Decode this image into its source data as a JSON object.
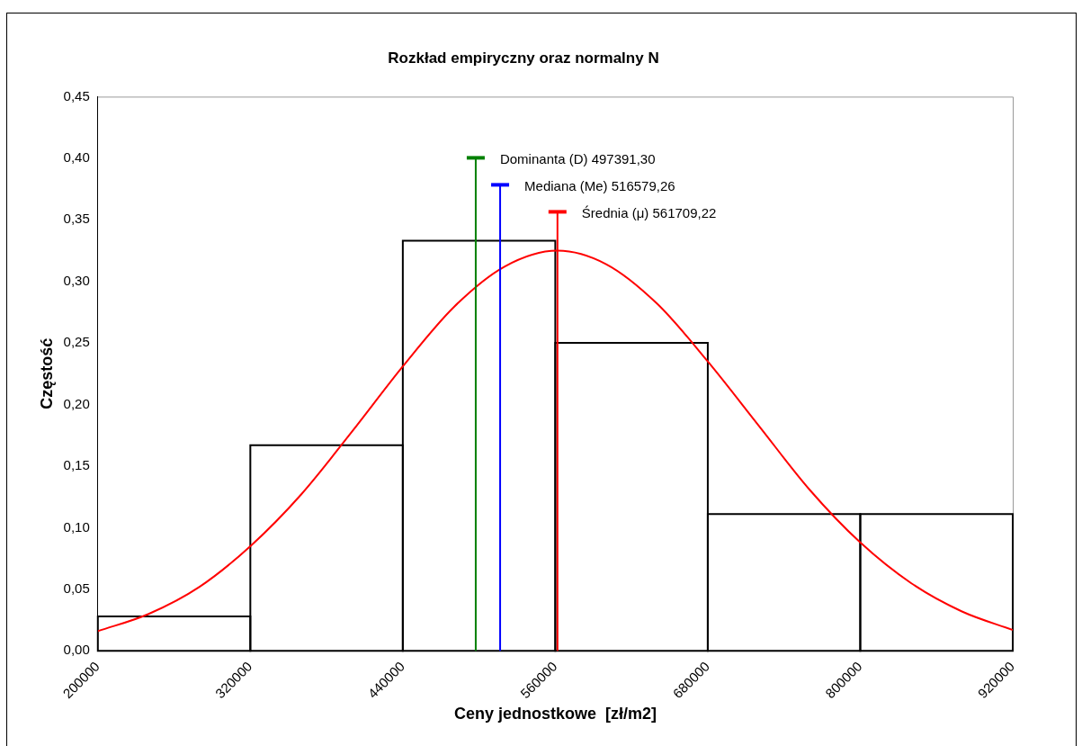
{
  "chart_data": {
    "type": "histogram",
    "title": "Rozkład empiryczny oraz normalny N",
    "xlabel": "Ceny jednostkowe  [zł/m2]",
    "ylabel": "Częstość",
    "bins": [
      200000,
      320000,
      440000,
      560000,
      680000,
      800000,
      920000
    ],
    "values": [
      0.028,
      0.167,
      0.333,
      0.25,
      0.111,
      0.111
    ],
    "color": "#000000",
    "series": [
      {
        "type": "line",
        "color": "#ff0000",
        "x": [
          200000,
          240000,
          280000,
          320000,
          360000,
          400000,
          440000,
          480000,
          520000,
          561709,
          600000,
          640000,
          680000,
          720000,
          760000,
          800000,
          840000,
          880000,
          920000
        ],
        "values": [
          0.016,
          0.03,
          0.052,
          0.085,
          0.127,
          0.178,
          0.231,
          0.279,
          0.312,
          0.325,
          0.314,
          0.282,
          0.235,
          0.183,
          0.131,
          0.088,
          0.055,
          0.032,
          0.017
        ]
      }
    ],
    "ref_lines": [
      {
        "axis": "x",
        "value": 497391.3,
        "label": "Dominanta (D) 497391,30",
        "color": "#008000"
      },
      {
        "axis": "x",
        "value": 516579.26,
        "label": "Mediana (Me) 516579,26",
        "color": "#0000ff"
      },
      {
        "axis": "x",
        "value": 561709.22,
        "label": "Średnia (μ) 561709,22",
        "color": "#ff0000"
      }
    ],
    "xlim": [
      200000,
      920000
    ],
    "xticks": [
      200000,
      320000,
      440000,
      560000,
      680000,
      800000,
      920000
    ],
    "ylim": [
      0,
      0.45
    ],
    "yticks": [
      {
        "value": 0,
        "label": "0,00"
      },
      {
        "value": 0.05,
        "label": "0,05"
      },
      {
        "value": 0.1,
        "label": "0,10"
      },
      {
        "value": 0.15,
        "label": "0,15"
      },
      {
        "value": 0.2,
        "label": "0,20"
      },
      {
        "value": 0.25,
        "label": "0,25"
      },
      {
        "value": 0.3,
        "label": "0,30"
      },
      {
        "value": 0.35,
        "label": "0,35"
      },
      {
        "value": 0.4,
        "label": "0,40"
      },
      {
        "value": 0.45,
        "label": "0,45"
      }
    ],
    "grid": false,
    "legend": false,
    "marker": "none"
  }
}
